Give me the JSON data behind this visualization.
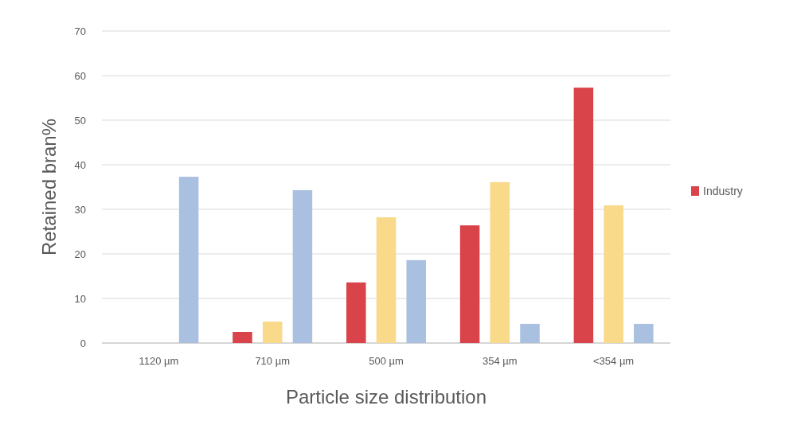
{
  "chart_data": {
    "type": "bar",
    "xlabel": "Particle size distribution",
    "ylabel": "Retained bran%",
    "categories": [
      "1120 µm",
      "710 µm",
      "500 µm",
      "354 µm",
      "<354 µm"
    ],
    "series": [
      {
        "name": "Industry",
        "color": "#d9434a",
        "values": [
          0,
          2.5,
          13.6,
          26.4,
          57.3
        ]
      },
      {
        "color": "#f9d98a",
        "values": [
          0,
          4.8,
          28.2,
          36.1,
          30.9
        ]
      },
      {
        "color": "#a9c0e0",
        "values": [
          37.3,
          34.3,
          18.6,
          4.3,
          4.3
        ]
      }
    ],
    "ylim": [
      0,
      70
    ],
    "yticks": [
      0,
      10,
      20,
      30,
      40,
      50,
      60,
      70
    ],
    "grid": "y",
    "legend": "right"
  }
}
